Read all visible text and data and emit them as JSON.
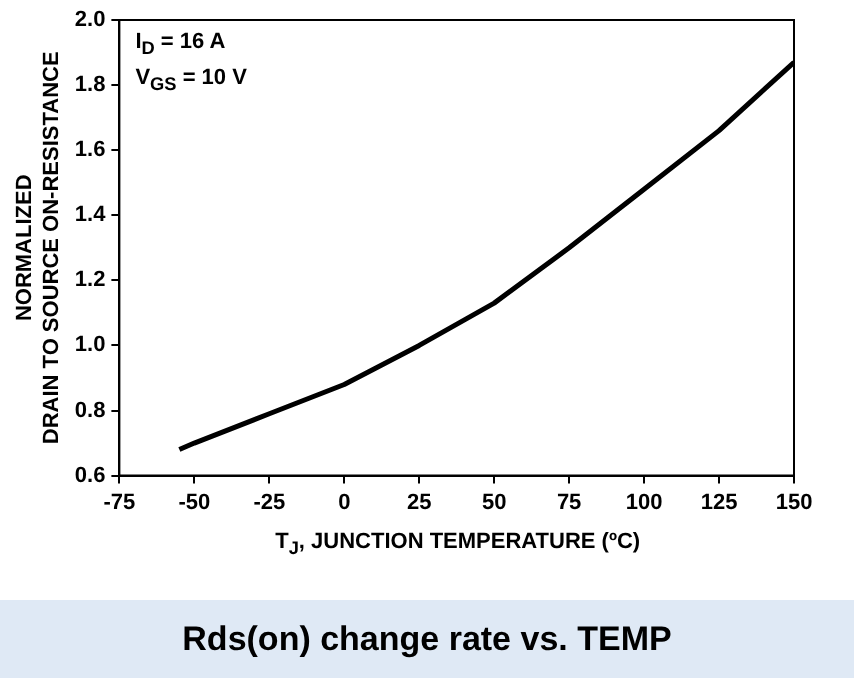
{
  "chart_data": {
    "type": "line",
    "title": "Rds(on) change rate vs. TEMP",
    "xlabel": "T$_{J}$, JUNCTION TEMPERATURE (ºC)",
    "ylabel": "NORMALIZED\nDRAIN TO SOURCE ON-RESISTANCE",
    "annotations": [
      "I$_{D}$ = 16 A",
      "V$_{GS}$ = 10 V"
    ],
    "x": [
      -55,
      -50,
      -25,
      0,
      25,
      50,
      75,
      100,
      125,
      150
    ],
    "series": [
      {
        "color": "#000000",
        "values": [
          0.68,
          0.7,
          0.79,
          0.88,
          1.0,
          1.13,
          1.3,
          1.48,
          1.66,
          1.87
        ]
      }
    ],
    "xlim": [
      -75,
      150
    ],
    "xticks": [
      -75,
      -50,
      -25,
      0,
      25,
      50,
      75,
      100,
      125,
      150
    ],
    "ylim": [
      0.6,
      2.0
    ],
    "yticks": [
      0.6,
      0.8,
      {
        "value": 1,
        "label": "1.0"
      },
      1.2,
      1.4,
      1.6,
      1.8,
      {
        "value": 2,
        "label": "2.0"
      }
    ],
    "marker": "none",
    "line_style": "solid",
    "legend": false
  }
}
